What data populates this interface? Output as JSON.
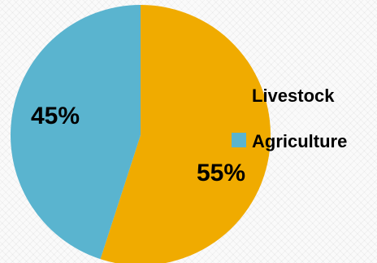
{
  "chart_data": {
    "type": "pie",
    "categories": [
      "Livestock",
      "Agriculture"
    ],
    "values": [
      55,
      45
    ],
    "data_labels": [
      "55%",
      "45%"
    ],
    "colors": [
      "#f0ab00",
      "#5ab4cf"
    ],
    "legend": {
      "placement": "right",
      "entries": [
        {
          "label": "Livestock",
          "color": "#f0ab00",
          "marker_shown": false
        },
        {
          "label": "Agriculture",
          "color": "#5ab4cf",
          "marker_shown": true
        }
      ]
    },
    "title": ""
  }
}
